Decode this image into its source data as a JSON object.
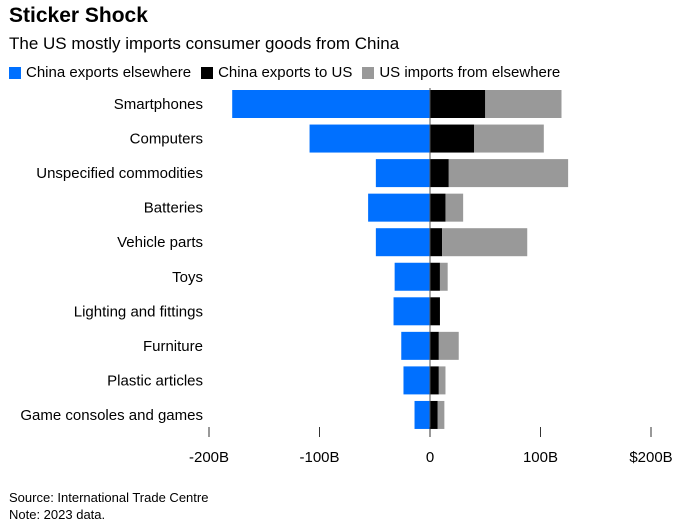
{
  "title": "Sticker Shock",
  "subtitle": "The US mostly imports consumer goods from China",
  "footer": {
    "source": "Source: International Trade Centre",
    "note": "Note: 2023 data."
  },
  "chart_data": {
    "type": "bar",
    "orientation": "horizontal",
    "stacked": true,
    "units": "USD billions",
    "categories": [
      "Smartphones",
      "Computers",
      "Unspecified commodities",
      "Batteries",
      "Vehicle parts",
      "Toys",
      "Lighting and fittings",
      "Furniture",
      "Plastic articles",
      "Game consoles and games"
    ],
    "series": [
      {
        "name": "China exports elsewhere",
        "color": "#0070ff",
        "values": [
          -179,
          -109,
          -49,
          -56,
          -49,
          -32,
          -33,
          -26,
          -24,
          -14
        ]
      },
      {
        "name": "China exports to US",
        "color": "#000000",
        "values": [
          50,
          40,
          17,
          14,
          11,
          9,
          9,
          8,
          8,
          7
        ]
      },
      {
        "name": "US imports from elsewhere",
        "color": "#999999",
        "values": [
          69,
          63,
          108,
          16,
          77,
          7,
          0,
          18,
          6,
          6
        ]
      }
    ],
    "xlim": [
      -200,
      200
    ],
    "xticks": [
      -200,
      -100,
      0,
      100,
      200
    ],
    "xtick_labels": [
      "-200B",
      "-100B",
      "0",
      "100B",
      "$200B"
    ],
    "legend": "top-left",
    "grid": false
  }
}
